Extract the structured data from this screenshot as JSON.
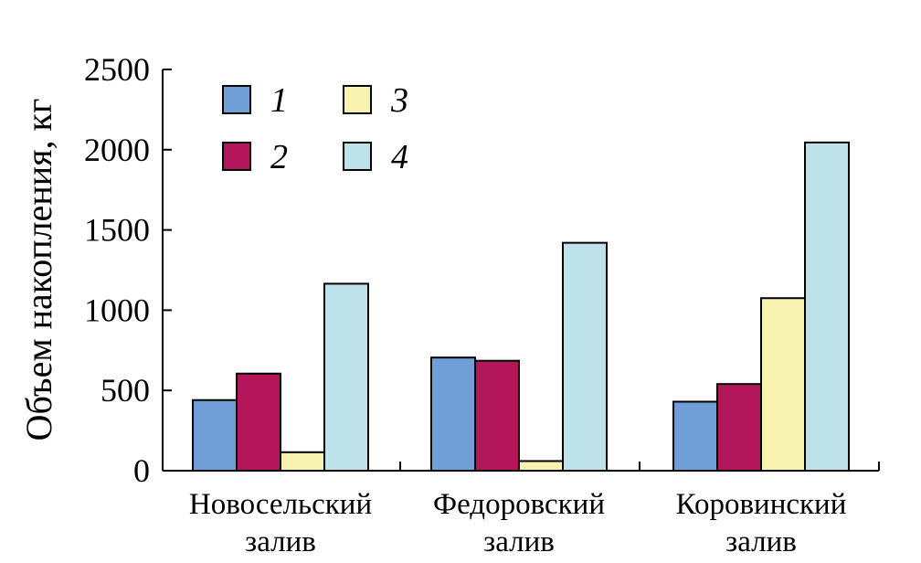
{
  "chart_data": {
    "type": "bar",
    "title": "",
    "xlabel": "",
    "ylabel": "Объем накопления, кг",
    "ylim": [
      0,
      2500
    ],
    "yticks": [
      0,
      500,
      1000,
      1500,
      2000,
      2500
    ],
    "grid": false,
    "legend_placement": "top-left",
    "categories": [
      [
        "Новосельский",
        "залив"
      ],
      [
        "Федоровский",
        "залив"
      ],
      [
        "Коровинский",
        "залив"
      ]
    ],
    "series": [
      {
        "name": "1",
        "color": "#6f9fd6",
        "values": [
          440,
          705,
          430
        ]
      },
      {
        "name": "2",
        "color": "#b3165a",
        "values": [
          605,
          685,
          540
        ]
      },
      {
        "name": "3",
        "color": "#f9f3b2",
        "values": [
          115,
          60,
          1075
        ]
      },
      {
        "name": "4",
        "color": "#bde2ea",
        "values": [
          1165,
          1420,
          2045
        ]
      }
    ]
  }
}
